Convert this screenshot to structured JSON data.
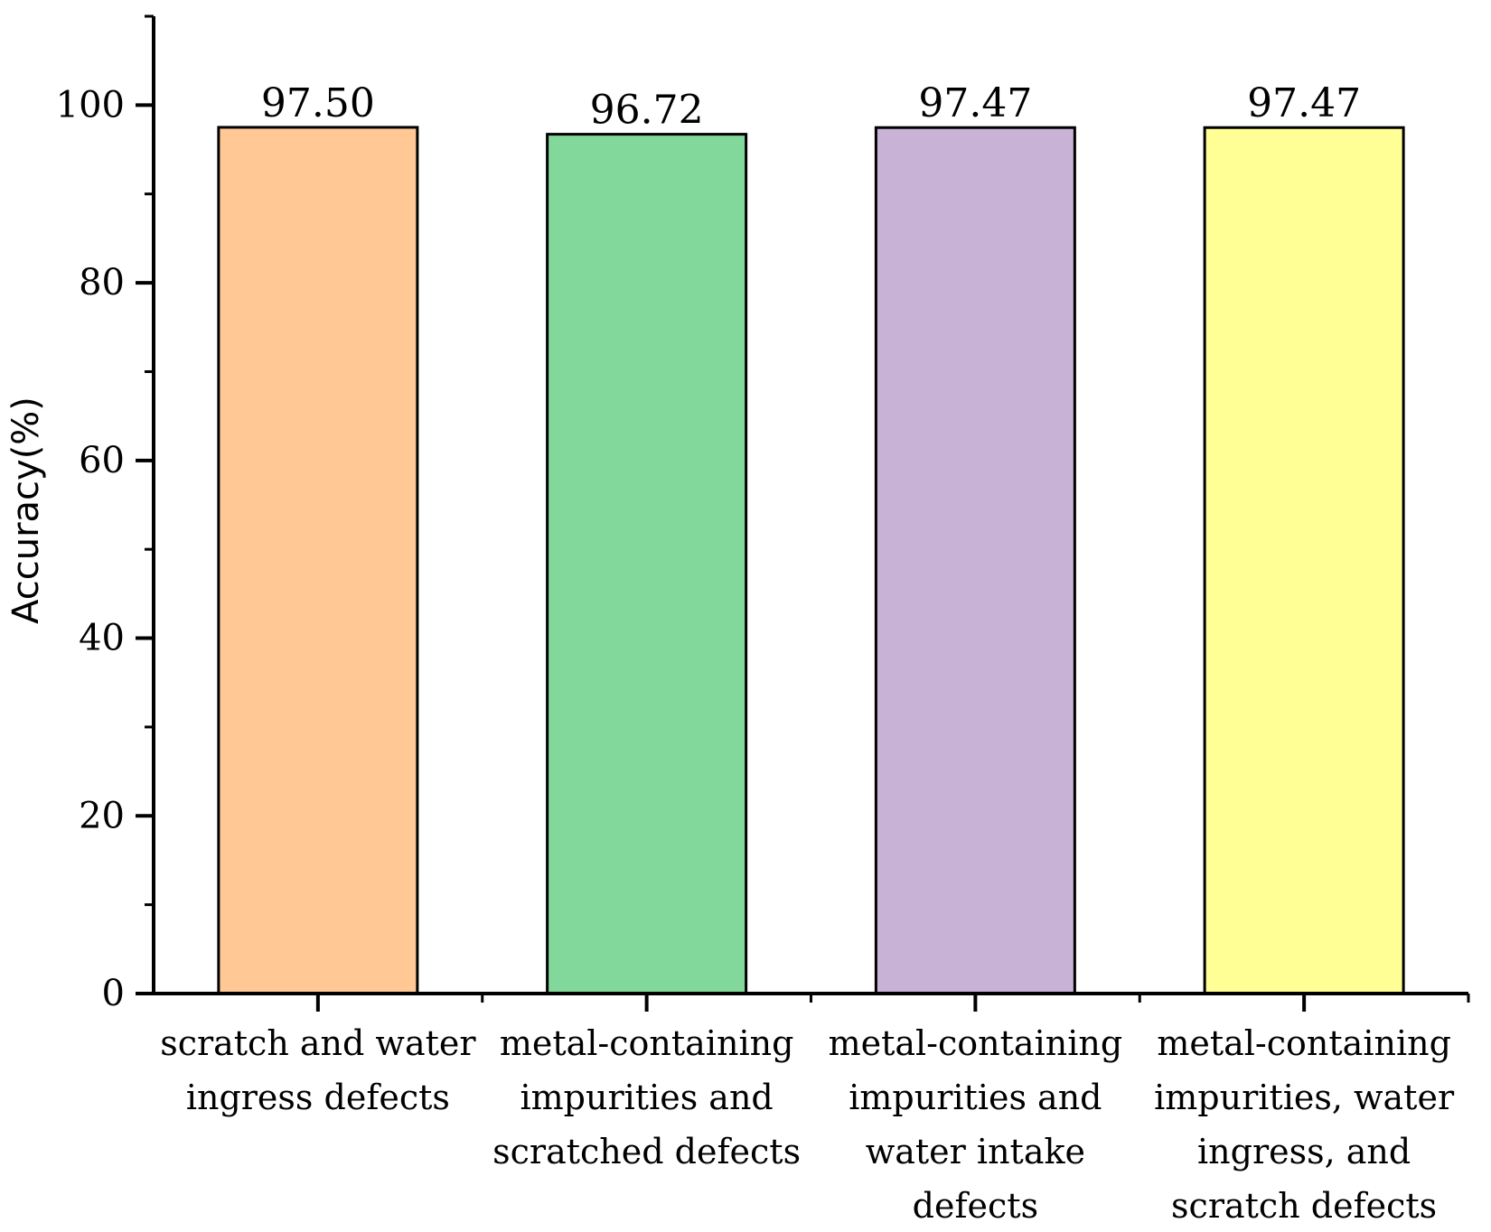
{
  "chart_data": {
    "type": "bar",
    "title": "",
    "xlabel": "",
    "ylabel": "Accuracy(%)",
    "ylim": [
      0,
      110
    ],
    "yticks": [
      0,
      20,
      40,
      60,
      80,
      100
    ],
    "categories": [
      [
        "scratch and water",
        "ingress defects"
      ],
      [
        "metal-containing",
        "impurities and",
        "scratched defects"
      ],
      [
        "metal-containing",
        "impurities and",
        "water intake",
        "defects"
      ],
      [
        "metal-containing",
        "impurities, water",
        "ingress, and",
        "scratch defects"
      ]
    ],
    "values": [
      97.5,
      96.72,
      97.47,
      97.47
    ],
    "value_labels": [
      "97.50",
      "96.72",
      "97.47",
      "97.47"
    ],
    "colors": [
      "#FFC895",
      "#82D89A",
      "#C8B2D6",
      "#FFFF96"
    ],
    "grid": false,
    "legend": "none"
  }
}
